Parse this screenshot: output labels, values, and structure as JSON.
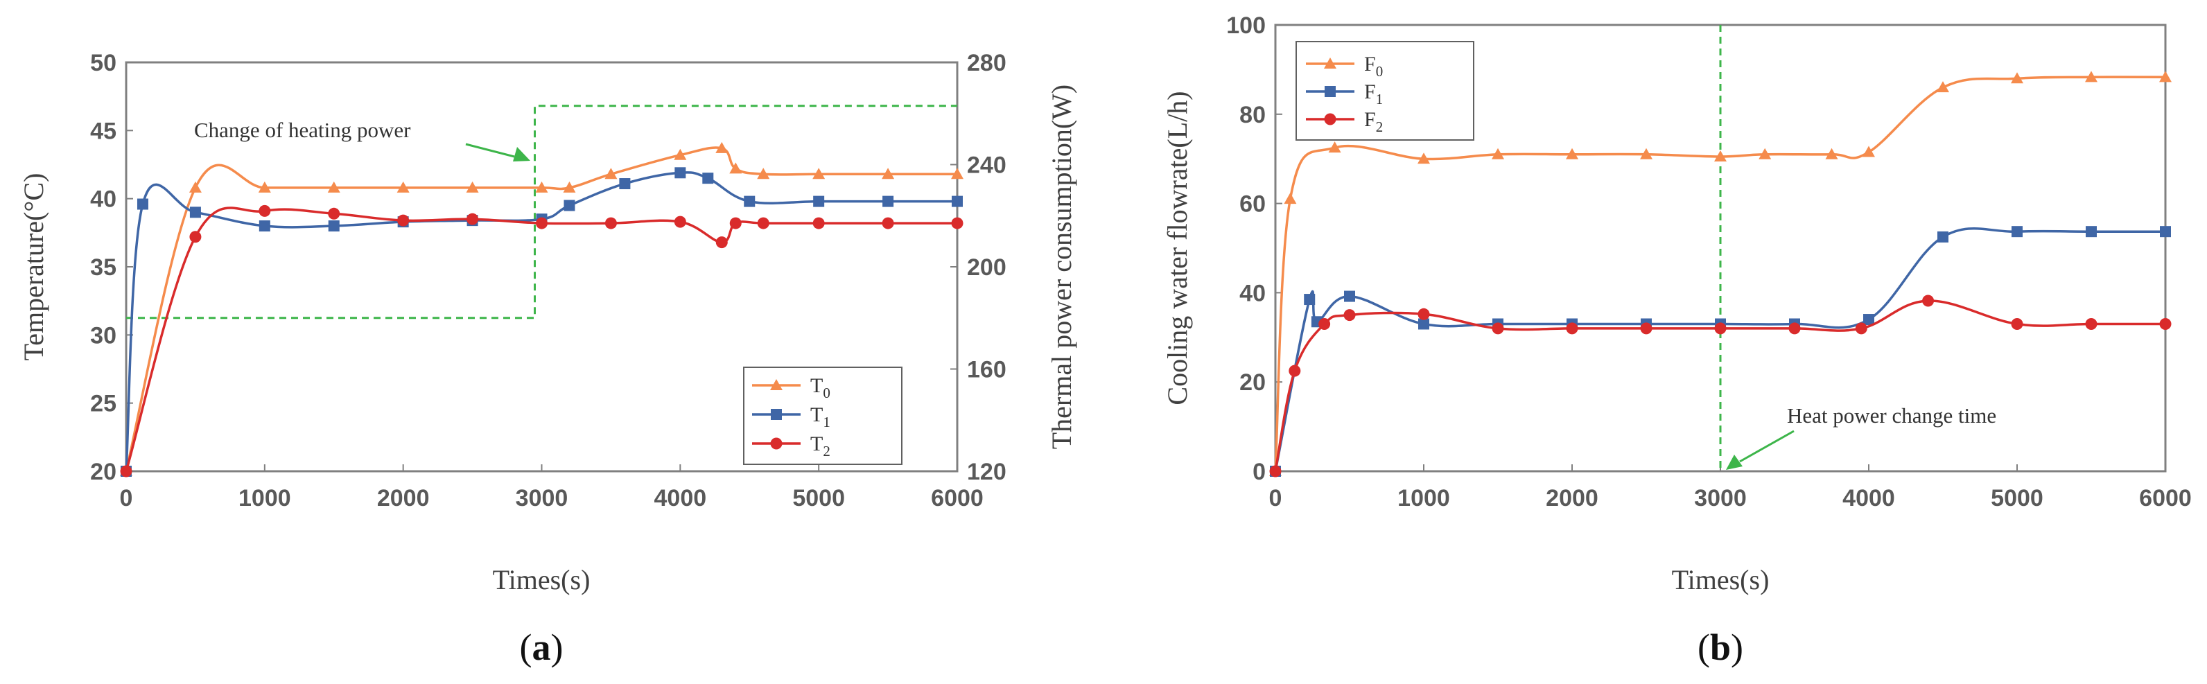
{
  "colors": {
    "s0": "#F58B4C",
    "s1": "#3F66A6",
    "s2": "#D92B2B",
    "power": "#3DB54A",
    "axis": "#7F7F7F"
  },
  "chart_data": [
    {
      "panel": "a",
      "panel_label": "a",
      "type": "line",
      "xlabel": "Times(s)",
      "ylabel": "Temperature(°C)",
      "y2label": "Thermal power consumption(W)",
      "xlim": [
        0,
        6000
      ],
      "ylim": [
        20,
        50
      ],
      "y2lim": [
        120,
        280
      ],
      "xticks": [
        "0",
        "1000",
        "2000",
        "3000",
        "4000",
        "5000",
        "6000"
      ],
      "yticks": [
        "20",
        "25",
        "30",
        "35",
        "40",
        "45",
        "50"
      ],
      "y2ticks": [
        "120",
        "160",
        "200",
        "240",
        "280"
      ],
      "legend": {
        "position": "bottom-right",
        "entries": [
          {
            "base": "T",
            "sub": "0"
          },
          {
            "base": "T",
            "sub": "1"
          },
          {
            "base": "T",
            "sub": "2"
          }
        ]
      },
      "annotation": "Change of heating power",
      "series": [
        {
          "name": "T0",
          "marker": "triangle",
          "color_key": "s0",
          "x": [
            0,
            500,
            1000,
            1500,
            2000,
            2500,
            3000,
            3200,
            3500,
            4000,
            4300,
            4400,
            4600,
            5000,
            5500,
            6000
          ],
          "y": [
            20,
            40.8,
            40.8,
            40.8,
            40.8,
            40.8,
            40.8,
            40.8,
            41.8,
            43.2,
            43.7,
            42.2,
            41.8,
            41.8,
            41.8,
            41.8
          ]
        },
        {
          "name": "T1",
          "marker": "square",
          "color_key": "s1",
          "x": [
            0,
            120,
            500,
            1000,
            1500,
            2000,
            2500,
            3000,
            3200,
            3600,
            4000,
            4200,
            4500,
            5000,
            5500,
            6000
          ],
          "y": [
            20,
            39.6,
            39,
            38,
            38,
            38.3,
            38.4,
            38.5,
            39.5,
            41.1,
            41.9,
            41.5,
            39.8,
            39.8,
            39.8,
            39.8
          ]
        },
        {
          "name": "T2",
          "marker": "circle",
          "color_key": "s2",
          "x": [
            0,
            500,
            1000,
            1500,
            2000,
            2500,
            3000,
            3500,
            4000,
            4300,
            4400,
            4600,
            5000,
            5500,
            6000
          ],
          "y": [
            20,
            37.2,
            39.1,
            38.9,
            38.4,
            38.5,
            38.2,
            38.2,
            38.3,
            36.8,
            38.2,
            38.2,
            38.2,
            38.2,
            38.2
          ]
        }
      ],
      "power_series": {
        "name": "Heating power",
        "style": "dashed",
        "color_key": "power",
        "x": [
          0,
          2950,
          2950,
          6000
        ],
        "y": [
          180,
          180,
          263,
          263
        ]
      }
    },
    {
      "panel": "b",
      "panel_label": "b",
      "type": "line",
      "xlabel": "Times(s)",
      "ylabel": "Cooling water flowrate(L/h)",
      "xlim": [
        0,
        6000
      ],
      "ylim": [
        0,
        100
      ],
      "xticks": [
        "0",
        "1000",
        "2000",
        "3000",
        "4000",
        "5000",
        "6000"
      ],
      "yticks": [
        "0",
        "20",
        "40",
        "60",
        "80",
        "100"
      ],
      "legend": {
        "position": "top-left",
        "entries": [
          {
            "base": "F",
            "sub": "0"
          },
          {
            "base": "F",
            "sub": "1"
          },
          {
            "base": "F",
            "sub": "2"
          }
        ]
      },
      "annotation": "Heat power change time",
      "vline_x": 3000,
      "series": [
        {
          "name": "F0",
          "marker": "triangle",
          "color_key": "s0",
          "x": [
            0,
            100,
            400,
            1000,
            1500,
            2000,
            2500,
            3000,
            3300,
            3750,
            4000,
            4500,
            5000,
            5500,
            6000
          ],
          "y": [
            0,
            61,
            72.5,
            70,
            71,
            71,
            71,
            70.5,
            71,
            71,
            71.5,
            86,
            88,
            88.3,
            88.3
          ]
        },
        {
          "name": "F1",
          "marker": "square",
          "color_key": "s1",
          "x": [
            0,
            230,
            280,
            500,
            1000,
            1500,
            2000,
            2500,
            3000,
            3500,
            4000,
            4500,
            5000,
            5500,
            6000
          ],
          "y": [
            0,
            38.5,
            33.5,
            39.2,
            33,
            33,
            33,
            33,
            33,
            33,
            34,
            52.5,
            53.7,
            53.7,
            53.7
          ]
        },
        {
          "name": "F2",
          "marker": "circle",
          "color_key": "s2",
          "x": [
            0,
            130,
            330,
            500,
            1000,
            1500,
            2000,
            2500,
            3000,
            3500,
            3950,
            4400,
            5000,
            5500,
            6000
          ],
          "y": [
            0,
            22.5,
            33,
            35,
            35.2,
            32,
            32,
            32,
            32,
            32,
            32,
            38.2,
            33,
            33,
            33
          ]
        }
      ]
    }
  ]
}
